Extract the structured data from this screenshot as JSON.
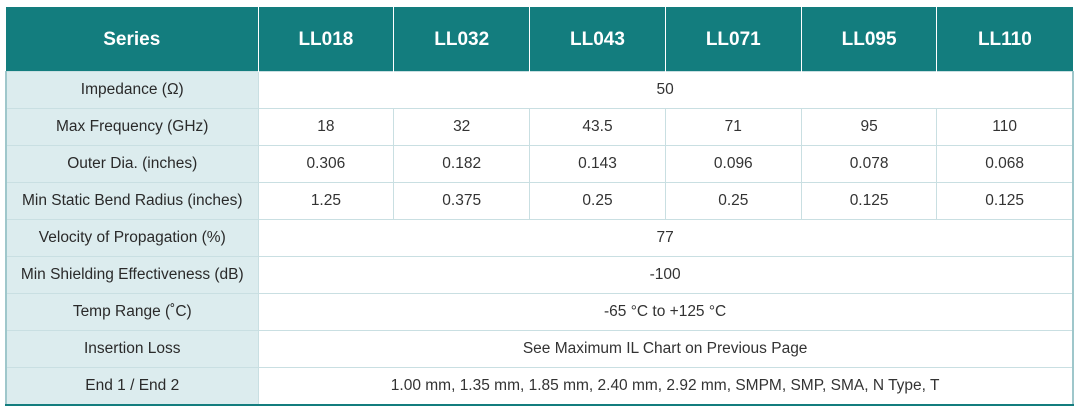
{
  "table": {
    "header": {
      "label": "Series",
      "series": [
        "LL018",
        "LL032",
        "LL043",
        "LL071",
        "LL095",
        "LL110"
      ]
    },
    "rows": [
      {
        "label": "Impedance (Ω)",
        "merged": true,
        "value": "50"
      },
      {
        "label": "Max Frequency (GHz)",
        "merged": false,
        "values": [
          "18",
          "32",
          "43.5",
          "71",
          "95",
          "110"
        ]
      },
      {
        "label": "Outer Dia. (inches)",
        "merged": false,
        "values": [
          "0.306",
          "0.182",
          "0.143",
          "0.096",
          "0.078",
          "0.068"
        ]
      },
      {
        "label": "Min Static Bend Radius (inches)",
        "merged": false,
        "values": [
          "1.25",
          "0.375",
          "0.25",
          "0.25",
          "0.125",
          "0.125"
        ]
      },
      {
        "label": "Velocity of Propagation (%)",
        "merged": true,
        "value": "77"
      },
      {
        "label": "Min Shielding Effectiveness (dB)",
        "merged": true,
        "value": "-100"
      },
      {
        "label": "Temp Range (˚C)",
        "merged": true,
        "value": "-65 °C to +125 °C"
      },
      {
        "label": "Insertion Loss",
        "merged": true,
        "value": "See Maximum IL Chart on Previous Page"
      },
      {
        "label": "End 1 / End 2",
        "merged": true,
        "value": "1.00 mm, 1.35 mm, 1.85 mm, 2.40 mm, 2.92 mm, SMPM, SMP, SMA, N Type, T"
      }
    ]
  },
  "colors": {
    "header_bg": "#137d7e",
    "label_bg": "#dcecee",
    "border": "#c9dfe2"
  }
}
